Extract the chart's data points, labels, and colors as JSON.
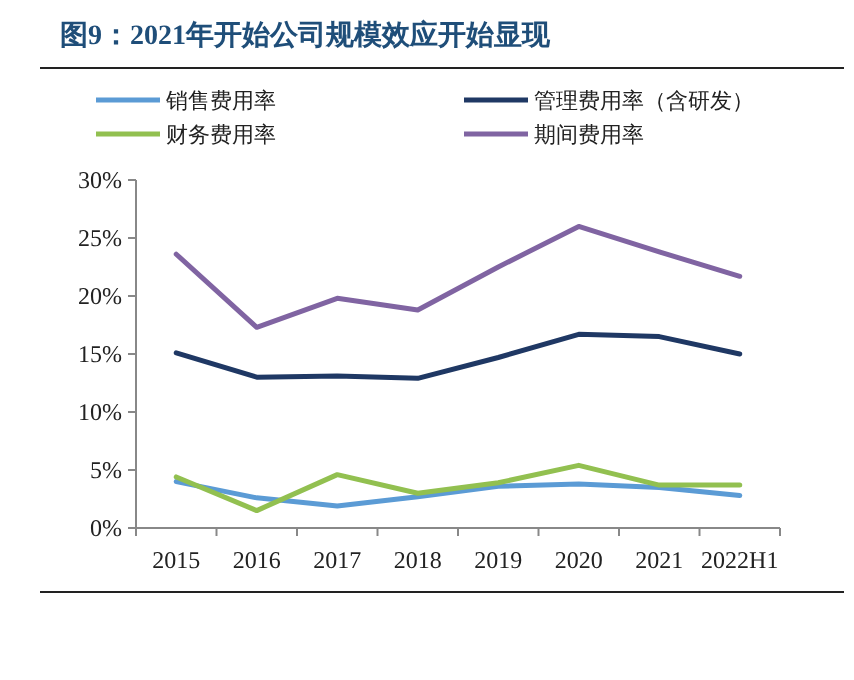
{
  "chart_data": {
    "type": "line",
    "title": "图9：2021年开始公司规模效应开始显现",
    "categories": [
      "2015",
      "2016",
      "2017",
      "2018",
      "2019",
      "2020",
      "2021",
      "2022H1"
    ],
    "series": [
      {
        "name": "销售费用率",
        "color": "#5b9bd5",
        "values": [
          4.0,
          2.6,
          1.9,
          2.7,
          3.6,
          3.8,
          3.5,
          2.8
        ]
      },
      {
        "name": "管理费用率（含研发）",
        "color": "#1f3864",
        "values": [
          15.1,
          13.0,
          13.1,
          12.9,
          14.7,
          16.7,
          16.5,
          15.0
        ]
      },
      {
        "name": "财务费用率",
        "color": "#92c050",
        "values": [
          4.4,
          1.5,
          4.6,
          3.0,
          3.9,
          5.4,
          3.7,
          3.7
        ]
      },
      {
        "name": "期间费用率",
        "color": "#8064a2",
        "values": [
          23.6,
          17.3,
          19.8,
          18.8,
          22.5,
          26.0,
          23.8,
          21.7
        ]
      }
    ],
    "ylim": [
      0,
      30
    ],
    "yticks": [
      {
        "value": 0,
        "label": "0%"
      },
      {
        "value": 5,
        "label": "5%"
      },
      {
        "value": 10,
        "label": "10%"
      },
      {
        "value": 15,
        "label": "15%"
      },
      {
        "value": 20,
        "label": "20%"
      },
      {
        "value": 25,
        "label": "25%"
      },
      {
        "value": 30,
        "label": "30%"
      }
    ],
    "grid": false,
    "legend": "top",
    "marker": "none",
    "line_style": "solid"
  }
}
